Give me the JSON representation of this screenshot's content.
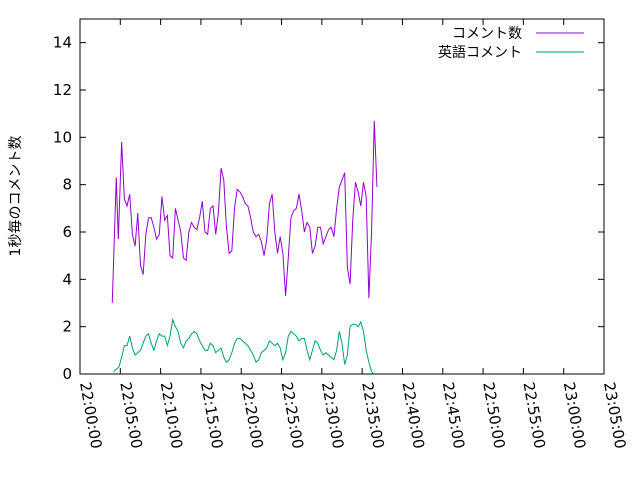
{
  "chart_data": {
    "type": "line",
    "title": "",
    "xlabel": "",
    "ylabel": "1秒毎のコメント数",
    "xlim": [
      "22:00:00",
      "23:05:00"
    ],
    "ylim": [
      0,
      15
    ],
    "yticks": [
      0,
      2,
      4,
      6,
      8,
      10,
      12,
      14
    ],
    "xticks": [
      "22:00:00",
      "22:05:00",
      "22:10:00",
      "22:15:00",
      "22:20:00",
      "22:25:00",
      "22:30:00",
      "22:35:00",
      "22:40:00",
      "22:45:00",
      "22:50:00",
      "22:55:00",
      "23:00:00",
      "23:05:00"
    ],
    "grid": false,
    "legend_position": "top-right",
    "series": [
      {
        "name": "コメント数",
        "color": "#9400d3",
        "points": [
          [
            "22:04:00",
            3.0
          ],
          [
            "22:04:30",
            8.3
          ],
          [
            "22:04:45",
            5.7
          ],
          [
            "22:05:10",
            9.8
          ],
          [
            "22:05:30",
            7.4
          ],
          [
            "22:05:50",
            7.1
          ],
          [
            "22:06:10",
            7.6
          ],
          [
            "22:06:30",
            5.9
          ],
          [
            "22:06:50",
            5.4
          ],
          [
            "22:07:10",
            6.8
          ],
          [
            "22:07:30",
            4.6
          ],
          [
            "22:07:50",
            4.2
          ],
          [
            "22:08:10",
            5.9
          ],
          [
            "22:08:30",
            6.6
          ],
          [
            "22:08:50",
            6.6
          ],
          [
            "22:09:10",
            6.2
          ],
          [
            "22:09:30",
            5.7
          ],
          [
            "22:09:50",
            5.9
          ],
          [
            "22:10:10",
            7.5
          ],
          [
            "22:10:30",
            6.5
          ],
          [
            "22:10:50",
            6.7
          ],
          [
            "22:11:10",
            5.0
          ],
          [
            "22:11:30",
            4.9
          ],
          [
            "22:11:50",
            7.0
          ],
          [
            "22:12:10",
            6.5
          ],
          [
            "22:12:30",
            6.0
          ],
          [
            "22:12:50",
            4.9
          ],
          [
            "22:13:10",
            4.8
          ],
          [
            "22:13:30",
            6.0
          ],
          [
            "22:13:50",
            6.4
          ],
          [
            "22:14:10",
            6.2
          ],
          [
            "22:14:30",
            6.1
          ],
          [
            "22:14:50",
            6.6
          ],
          [
            "22:15:10",
            7.3
          ],
          [
            "22:15:30",
            6.0
          ],
          [
            "22:15:50",
            5.9
          ],
          [
            "22:16:10",
            7.0
          ],
          [
            "22:16:30",
            7.1
          ],
          [
            "22:16:50",
            5.9
          ],
          [
            "22:17:10",
            6.8
          ],
          [
            "22:17:30",
            8.7
          ],
          [
            "22:17:50",
            8.2
          ],
          [
            "22:18:10",
            6.2
          ],
          [
            "22:18:30",
            5.1
          ],
          [
            "22:18:50",
            5.2
          ],
          [
            "22:19:10",
            7.0
          ],
          [
            "22:19:30",
            7.8
          ],
          [
            "22:19:50",
            7.7
          ],
          [
            "22:20:10",
            7.5
          ],
          [
            "22:20:30",
            7.2
          ],
          [
            "22:20:50",
            7.1
          ],
          [
            "22:21:10",
            6.6
          ],
          [
            "22:21:30",
            6.0
          ],
          [
            "22:21:50",
            5.8
          ],
          [
            "22:22:10",
            5.9
          ],
          [
            "22:22:30",
            5.6
          ],
          [
            "22:22:50",
            5.0
          ],
          [
            "22:23:10",
            5.7
          ],
          [
            "22:23:30",
            7.2
          ],
          [
            "22:23:50",
            7.6
          ],
          [
            "22:24:10",
            6.0
          ],
          [
            "22:24:30",
            5.1
          ],
          [
            "22:24:50",
            5.8
          ],
          [
            "22:25:10",
            5.1
          ],
          [
            "22:25:30",
            3.3
          ],
          [
            "22:25:50",
            4.9
          ],
          [
            "22:26:10",
            6.6
          ],
          [
            "22:26:30",
            6.9
          ],
          [
            "22:26:50",
            7.0
          ],
          [
            "22:27:10",
            7.6
          ],
          [
            "22:27:30",
            6.9
          ],
          [
            "22:27:50",
            6.0
          ],
          [
            "22:28:10",
            6.4
          ],
          [
            "22:28:30",
            6.2
          ],
          [
            "22:28:50",
            5.1
          ],
          [
            "22:29:10",
            5.4
          ],
          [
            "22:29:30",
            6.2
          ],
          [
            "22:29:50",
            6.2
          ],
          [
            "22:30:10",
            5.5
          ],
          [
            "22:30:30",
            5.8
          ],
          [
            "22:30:50",
            6.1
          ],
          [
            "22:31:10",
            6.2
          ],
          [
            "22:31:30",
            5.8
          ],
          [
            "22:31:50",
            7.0
          ],
          [
            "22:32:10",
            7.9
          ],
          [
            "22:32:30",
            8.2
          ],
          [
            "22:32:50",
            8.5
          ],
          [
            "22:33:10",
            4.5
          ],
          [
            "22:33:30",
            3.8
          ],
          [
            "22:33:50",
            6.5
          ],
          [
            "22:34:10",
            8.1
          ],
          [
            "22:34:30",
            7.7
          ],
          [
            "22:34:50",
            7.1
          ],
          [
            "22:35:10",
            8.1
          ],
          [
            "22:35:30",
            7.5
          ],
          [
            "22:35:50",
            3.2
          ],
          [
            "22:36:10",
            6.0
          ],
          [
            "22:36:30",
            10.7
          ],
          [
            "22:36:50",
            7.9
          ]
        ]
      },
      {
        "name": "英語コメント",
        "color": "#009e73",
        "points": [
          [
            "22:04:10",
            0.1
          ],
          [
            "22:04:30",
            0.2
          ],
          [
            "22:04:50",
            0.3
          ],
          [
            "22:05:10",
            0.7
          ],
          [
            "22:05:30",
            1.2
          ],
          [
            "22:05:50",
            1.2
          ],
          [
            "22:06:10",
            1.6
          ],
          [
            "22:06:30",
            1.1
          ],
          [
            "22:06:50",
            0.8
          ],
          [
            "22:07:10",
            0.9
          ],
          [
            "22:07:30",
            1.0
          ],
          [
            "22:07:50",
            1.3
          ],
          [
            "22:08:10",
            1.6
          ],
          [
            "22:08:30",
            1.7
          ],
          [
            "22:08:50",
            1.3
          ],
          [
            "22:09:10",
            1.0
          ],
          [
            "22:09:30",
            1.4
          ],
          [
            "22:09:50",
            1.7
          ],
          [
            "22:10:10",
            1.6
          ],
          [
            "22:10:30",
            1.6
          ],
          [
            "22:10:50",
            1.2
          ],
          [
            "22:11:10",
            1.6
          ],
          [
            "22:11:30",
            2.3
          ],
          [
            "22:11:50",
            2.0
          ],
          [
            "22:12:10",
            1.8
          ],
          [
            "22:12:30",
            1.3
          ],
          [
            "22:12:50",
            1.1
          ],
          [
            "22:13:10",
            1.4
          ],
          [
            "22:13:30",
            1.5
          ],
          [
            "22:13:50",
            1.7
          ],
          [
            "22:14:10",
            1.8
          ],
          [
            "22:14:30",
            1.7
          ],
          [
            "22:14:50",
            1.4
          ],
          [
            "22:15:10",
            1.2
          ],
          [
            "22:15:30",
            1.0
          ],
          [
            "22:15:50",
            1.0
          ],
          [
            "22:16:10",
            1.3
          ],
          [
            "22:16:30",
            1.2
          ],
          [
            "22:16:50",
            0.9
          ],
          [
            "22:17:10",
            1.0
          ],
          [
            "22:17:30",
            1.1
          ],
          [
            "22:17:50",
            0.7
          ],
          [
            "22:18:10",
            0.5
          ],
          [
            "22:18:30",
            0.6
          ],
          [
            "22:18:50",
            0.9
          ],
          [
            "22:19:10",
            1.3
          ],
          [
            "22:19:30",
            1.5
          ],
          [
            "22:19:50",
            1.5
          ],
          [
            "22:20:10",
            1.4
          ],
          [
            "22:20:30",
            1.3
          ],
          [
            "22:20:50",
            1.2
          ],
          [
            "22:21:10",
            1.0
          ],
          [
            "22:21:30",
            0.8
          ],
          [
            "22:21:50",
            0.5
          ],
          [
            "22:22:10",
            0.6
          ],
          [
            "22:22:30",
            0.9
          ],
          [
            "22:22:50",
            1.0
          ],
          [
            "22:23:10",
            1.1
          ],
          [
            "22:23:30",
            1.4
          ],
          [
            "22:23:50",
            1.3
          ],
          [
            "22:24:10",
            1.2
          ],
          [
            "22:24:30",
            1.3
          ],
          [
            "22:24:50",
            1.1
          ],
          [
            "22:25:10",
            0.6
          ],
          [
            "22:25:30",
            0.9
          ],
          [
            "22:25:50",
            1.6
          ],
          [
            "22:26:10",
            1.8
          ],
          [
            "22:26:30",
            1.7
          ],
          [
            "22:26:50",
            1.6
          ],
          [
            "22:27:10",
            1.4
          ],
          [
            "22:27:30",
            1.5
          ],
          [
            "22:27:50",
            1.5
          ],
          [
            "22:28:10",
            1.0
          ],
          [
            "22:28:30",
            0.6
          ],
          [
            "22:28:50",
            1.0
          ],
          [
            "22:29:10",
            1.4
          ],
          [
            "22:29:30",
            1.3
          ],
          [
            "22:29:50",
            1.0
          ],
          [
            "22:30:10",
            0.8
          ],
          [
            "22:30:30",
            0.9
          ],
          [
            "22:30:50",
            0.8
          ],
          [
            "22:31:10",
            0.7
          ],
          [
            "22:31:30",
            0.6
          ],
          [
            "22:31:50",
            1.0
          ],
          [
            "22:32:10",
            1.8
          ],
          [
            "22:32:30",
            1.3
          ],
          [
            "22:32:50",
            0.4
          ],
          [
            "22:33:10",
            0.8
          ],
          [
            "22:33:30",
            2.0
          ],
          [
            "22:33:50",
            2.1
          ],
          [
            "22:34:10",
            2.1
          ],
          [
            "22:34:30",
            2.0
          ],
          [
            "22:34:50",
            2.2
          ],
          [
            "22:35:10",
            1.8
          ],
          [
            "22:35:30",
            1.0
          ],
          [
            "22:35:50",
            0.5
          ],
          [
            "22:36:10",
            0.1
          ],
          [
            "22:36:30",
            0.0
          ]
        ]
      }
    ]
  }
}
